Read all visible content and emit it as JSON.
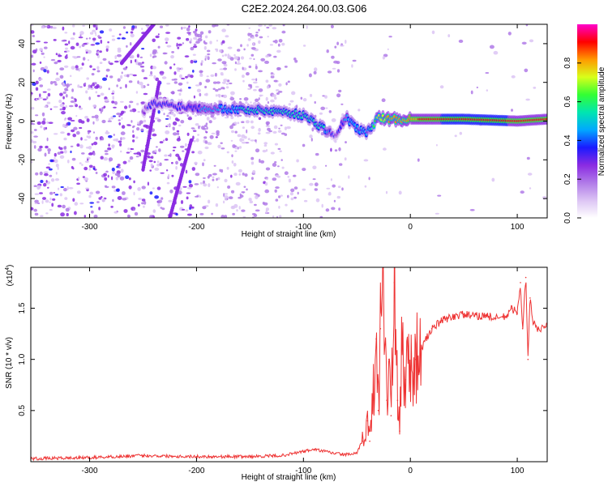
{
  "title": "C2E2.2024.264.00.03.G06",
  "colors": {
    "background": "#ffffff",
    "snr_line": "#ee3333",
    "colormap": [
      "#ffffff",
      "#dcc4f4",
      "#b07ae8",
      "#8a2be2",
      "#1a1aff",
      "#00a8ff",
      "#00e6b0",
      "#33ff33",
      "#d8ff1a",
      "#ff9900",
      "#ff0000",
      "#ff00cc"
    ]
  },
  "chart_data": [
    {
      "type": "heatmap",
      "title": "",
      "xlabel": "Height of straight line (km)",
      "ylabel": "Frequency (Hz)",
      "xlim": [
        -355,
        128
      ],
      "ylim": [
        -50,
        50
      ],
      "xticks": [
        -300,
        -200,
        -100,
        0,
        100
      ],
      "yticks": [
        -40,
        -20,
        0,
        20,
        40
      ],
      "colorbar": {
        "label": "Normalized spectral amplitude",
        "range": [
          0,
          1
        ],
        "ticks": [
          "0.0",
          "0.2",
          "0.4",
          "0.6",
          "0.8"
        ]
      },
      "ridge": {
        "x": [
          -355,
          -250,
          -240,
          -200,
          -160,
          -120,
          -100,
          -80,
          -70,
          -60,
          -50,
          -40,
          -30,
          -20,
          0,
          50,
          100,
          128
        ],
        "y": [
          0,
          5,
          9,
          7,
          6,
          5,
          3,
          -4,
          -8,
          2,
          -4,
          -6,
          2,
          1,
          1,
          1,
          0,
          1
        ],
        "amplitude": [
          0.2,
          0.3,
          0.35,
          0.4,
          0.5,
          0.5,
          0.55,
          0.5,
          0.3,
          0.45,
          0.5,
          0.45,
          0.7,
          0.8,
          0.85,
          0.95,
          0.9,
          0.9
        ]
      },
      "streaks": [
        {
          "x": [
            -270,
            -240
          ],
          "y": [
            30,
            50
          ]
        },
        {
          "x": [
            -250,
            -235
          ],
          "y": [
            -25,
            20
          ]
        },
        {
          "x": [
            -225,
            -205
          ],
          "y": [
            -50,
            -10
          ]
        }
      ]
    },
    {
      "type": "line",
      "title": "",
      "xlabel": "Height of straight line (km)",
      "ylabel": "SNR (10 * v/v)",
      "y_multiplier": "(x10",
      "y_multiplier_exp": "4",
      "y_multiplier_close": ")",
      "xlim": [
        -355,
        128
      ],
      "ylim": [
        0,
        1.9
      ],
      "xticks": [
        -300,
        -200,
        -100,
        0,
        100
      ],
      "yticks": [
        "0.5",
        "1.0",
        "1.5"
      ],
      "series": [
        {
          "x": [
            -355,
            -300,
            -250,
            -200,
            -150,
            -120,
            -100,
            -90,
            -80,
            -70,
            -60,
            -50,
            -45,
            -40,
            -38,
            -35,
            -32,
            -30,
            -28,
            -25,
            -22,
            -20,
            -18,
            -15,
            -12,
            -10,
            -8,
            -5,
            -2,
            0,
            5,
            10,
            15,
            20,
            30,
            40,
            50,
            60,
            70,
            80,
            90,
            95,
            100,
            103,
            105,
            108,
            110,
            112,
            115,
            120,
            128
          ],
          "y": [
            0.03,
            0.04,
            0.06,
            0.05,
            0.05,
            0.06,
            0.1,
            0.12,
            0.1,
            0.08,
            0.07,
            0.08,
            0.2,
            0.4,
            0.2,
            0.6,
            1.2,
            0.5,
            1.3,
            1.9,
            0.6,
            1.0,
            0.45,
            1.75,
            0.6,
            0.3,
            1.2,
            0.8,
            1.0,
            0.9,
            1.0,
            1.1,
            1.2,
            1.3,
            1.38,
            1.42,
            1.44,
            1.42,
            1.43,
            1.4,
            1.42,
            1.5,
            1.45,
            1.75,
            1.3,
            1.8,
            1.0,
            1.6,
            1.35,
            1.3,
            1.32
          ]
        }
      ]
    }
  ]
}
